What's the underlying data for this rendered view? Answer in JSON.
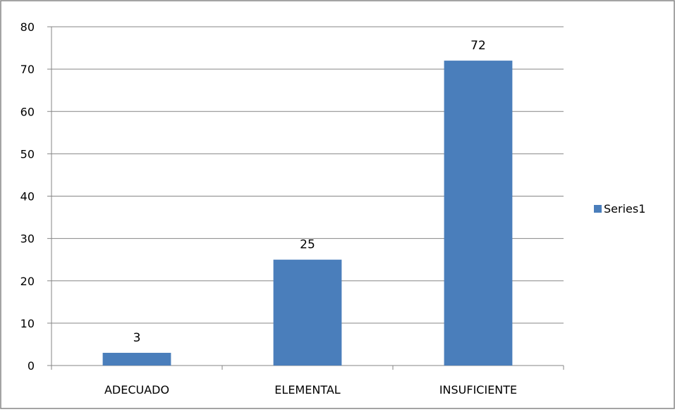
{
  "chart_data": {
    "type": "bar",
    "categories": [
      "ADECUADO",
      "ELEMENTAL",
      "INSUFICIENTE"
    ],
    "series": [
      {
        "name": "Series1",
        "values": [
          3,
          25,
          72
        ],
        "color": "#4a7ebb"
      }
    ],
    "data_labels": [
      "3",
      "25",
      "72"
    ],
    "ylim": [
      0,
      80
    ],
    "y_ticks": [
      0,
      10,
      20,
      30,
      40,
      50,
      60,
      70,
      80
    ],
    "grid": true,
    "legend": {
      "position": "right",
      "entries": [
        "Series1"
      ]
    },
    "colors": {
      "bar": "#4a7ebb",
      "gridline": "#868686",
      "axis": "#868686",
      "border": "#868686"
    }
  }
}
